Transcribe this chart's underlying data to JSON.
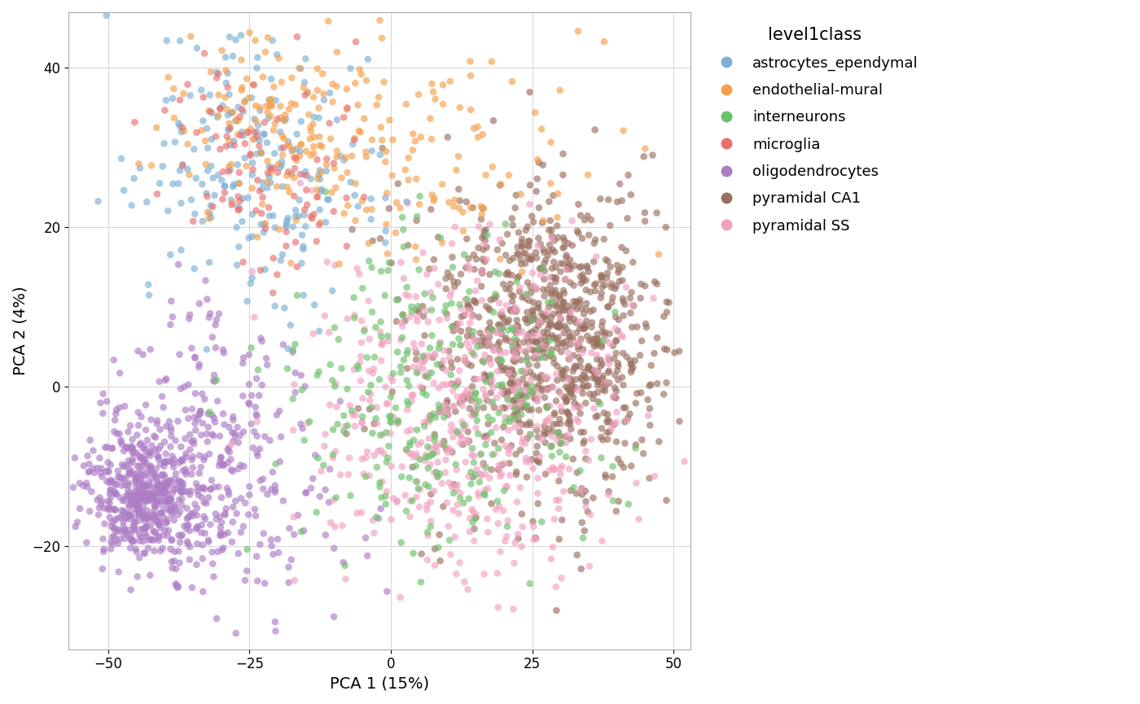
{
  "xlabel": "PCA 1 (15%)",
  "ylabel": "PCA 2 (4%)",
  "xlim": [
    -57,
    53
  ],
  "ylim": [
    -33,
    47
  ],
  "xticks": [
    -50,
    -25,
    0,
    25,
    50
  ],
  "yticks": [
    -20,
    0,
    20,
    40
  ],
  "legend_title": "level1class",
  "classes": [
    "astrocytes_ependymal",
    "endothelial-mural",
    "interneurons",
    "microglia",
    "oligodendrocytes",
    "pyramidal CA1",
    "pyramidal SS"
  ],
  "colors": {
    "astrocytes_ependymal": "#7BAFD4",
    "endothelial-mural": "#F5A04A",
    "interneurons": "#6DC16A",
    "microglia": "#E87070",
    "oligodendrocytes": "#AD7DC5",
    "pyramidal CA1": "#9B7060",
    "pyramidal SS": "#F2A0C0"
  },
  "alpha": 0.65,
  "marker_size": 38,
  "background_color": "#ffffff",
  "grid_color": "#d8d8d8",
  "font_size_labels": 14,
  "font_size_ticks": 12,
  "font_size_legend_title": 15,
  "font_size_legend": 13
}
